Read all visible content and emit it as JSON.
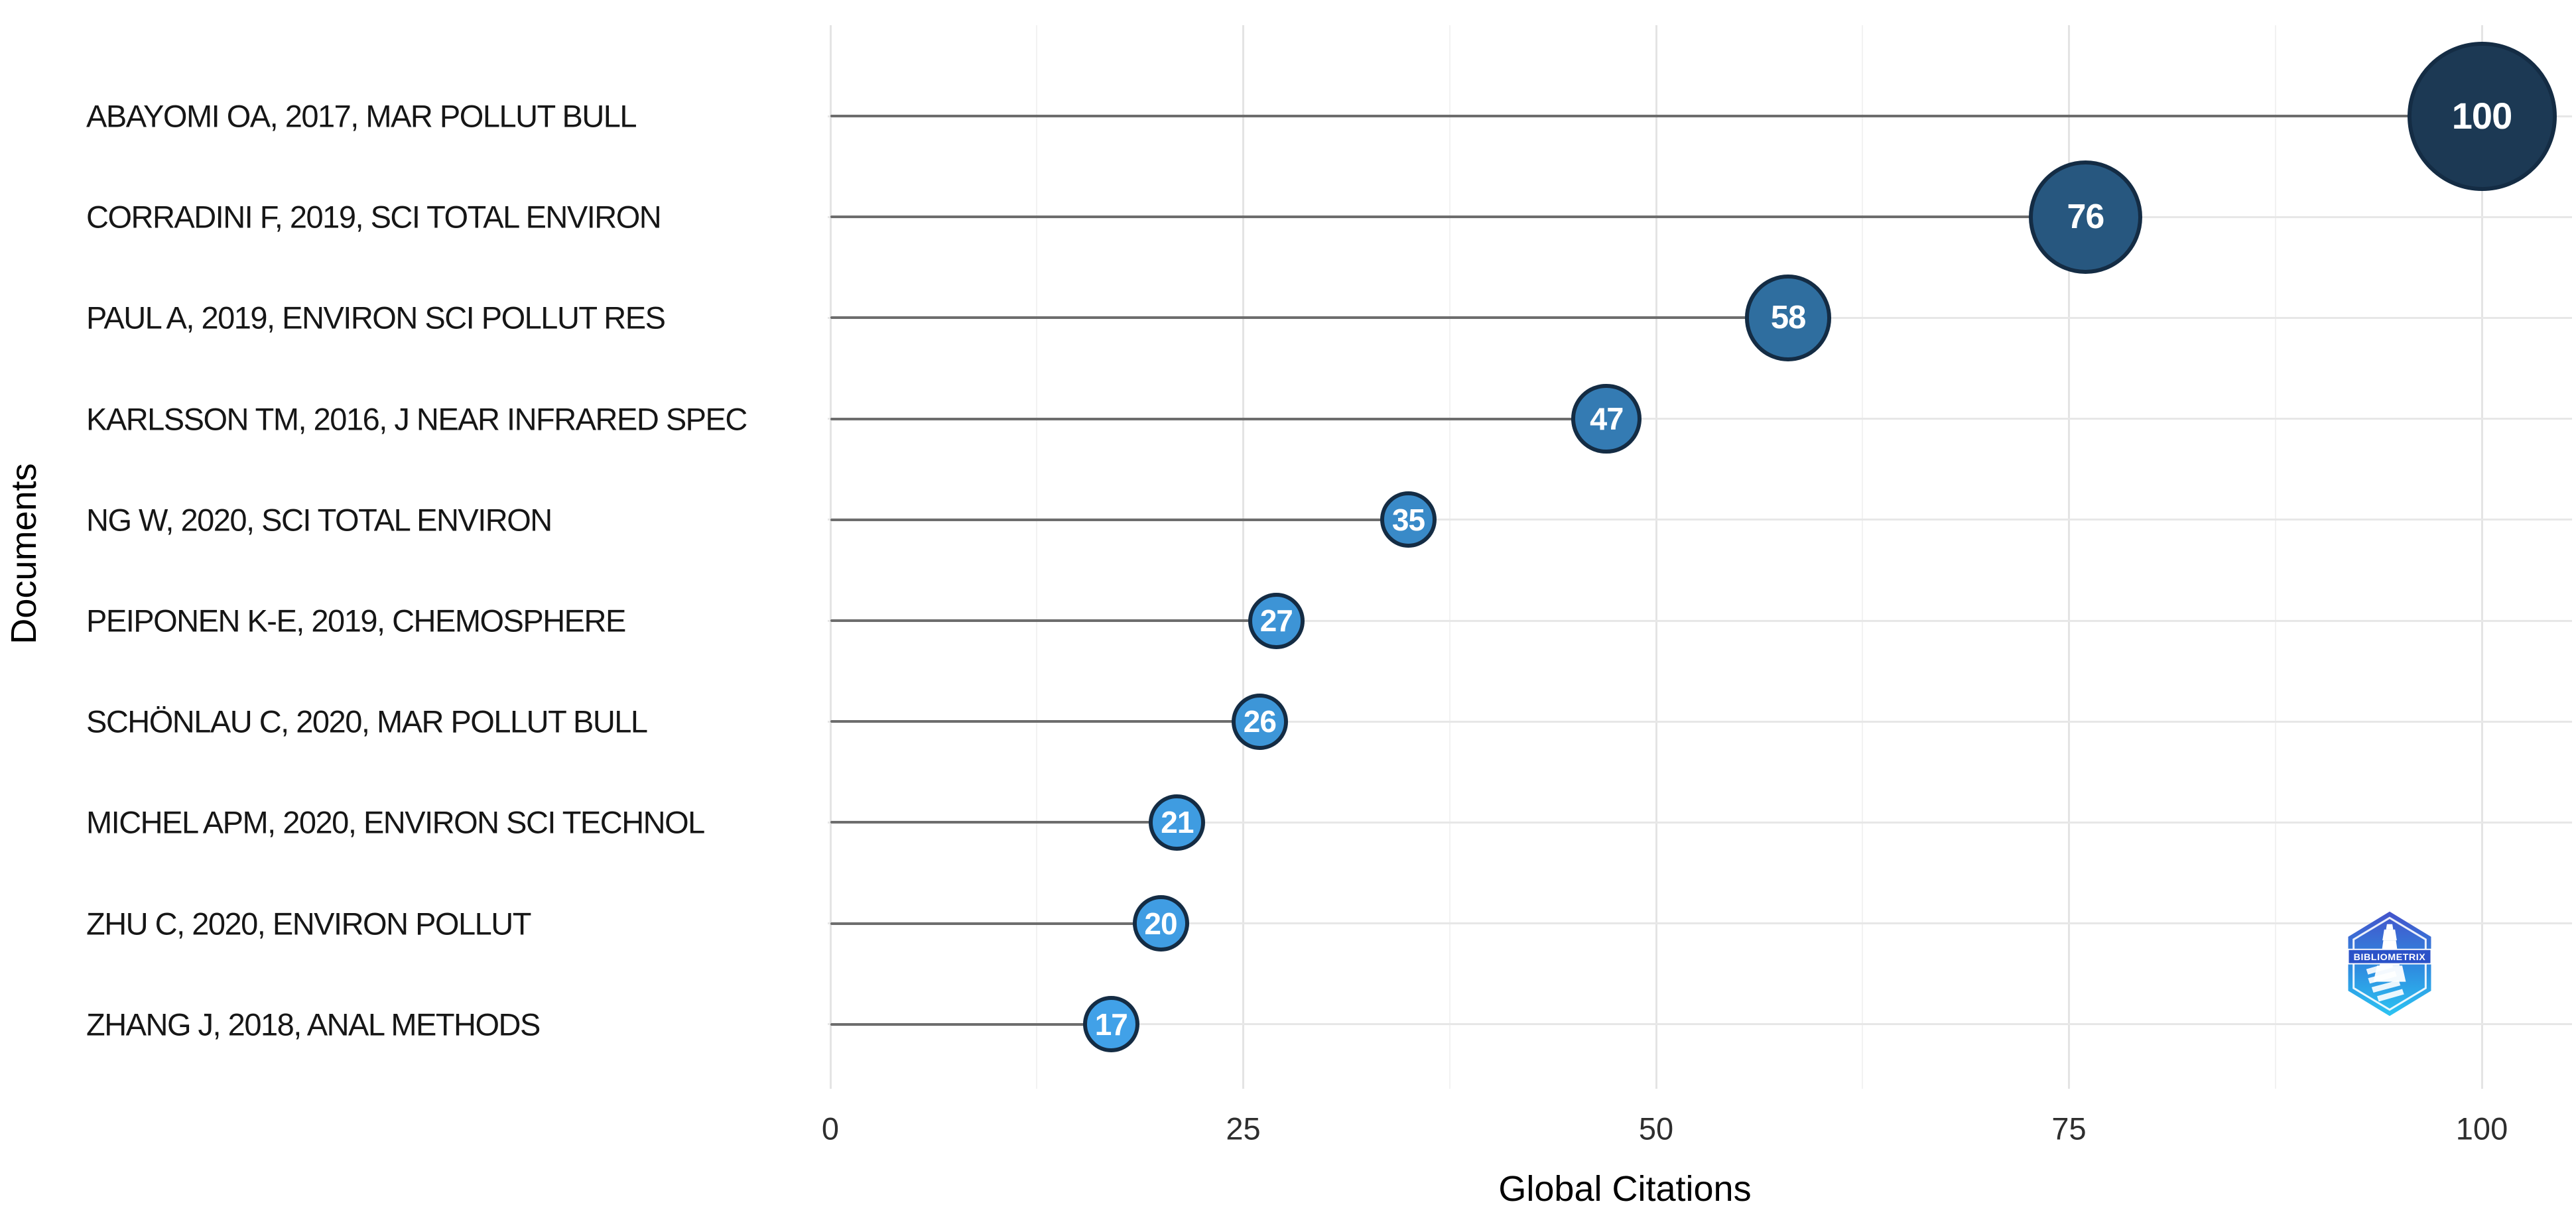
{
  "chart_data": {
    "type": "scatter",
    "subtype": "lollipop-bubble",
    "title": "",
    "xlabel": "Global Citations",
    "ylabel": "Documents",
    "x_ticks": [
      0,
      25,
      50,
      75,
      100
    ],
    "xlim": [
      0,
      105
    ],
    "grid": {
      "vertical_major_step": 25,
      "vertical_minor_step": 12.5,
      "horizontal_row_lines": true
    },
    "legend": "none",
    "points": [
      {
        "label": "ABAYOMI OA, 2017, MAR POLLUT BULL",
        "value": 100
      },
      {
        "label": "CORRADINI F, 2019, SCI TOTAL ENVIRON",
        "value": 76
      },
      {
        "label": "PAUL A, 2019, ENVIRON SCI POLLUT RES",
        "value": 58
      },
      {
        "label": "KARLSSON TM, 2016, J NEAR INFRARED SPEC",
        "value": 47
      },
      {
        "label": "NG W, 2020, SCI TOTAL ENVIRON",
        "value": 35
      },
      {
        "label": "PEIPONEN K-E, 2019, CHEMOSPHERE",
        "value": 27
      },
      {
        "label": "SCHÖNLAU C, 2020, MAR POLLUT BULL",
        "value": 26
      },
      {
        "label": "MICHEL APM, 2020, ENVIRON SCI TECHNOL",
        "value": 21
      },
      {
        "label": "ZHU C, 2020, ENVIRON POLLUT",
        "value": 20
      },
      {
        "label": "ZHANG J, 2018, ANAL METHODS",
        "value": 17
      }
    ],
    "colors": {
      "scale_low": "#41a1e8",
      "scale_high": "#1c3954",
      "scale_domain": [
        17,
        100
      ],
      "bubble_border": "#142c44",
      "bubble_text": "#ffffff",
      "stem": "#6d6d6d",
      "row_line": "#e7e7e7",
      "grid_major": "#e4e4e4",
      "grid_minor": "#f2f2f2"
    }
  },
  "logo": {
    "text": "BIBLIOMETRIX"
  }
}
